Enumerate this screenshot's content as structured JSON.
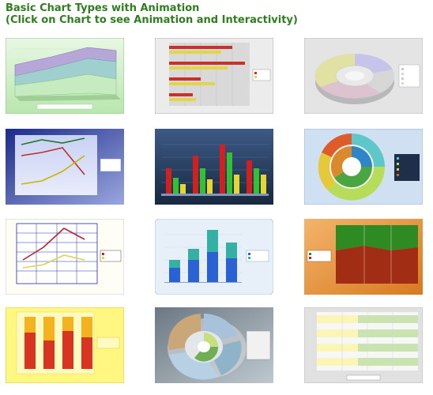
{
  "page": {
    "title_line1": "Basic Chart Types with Animation",
    "title_line2": "(Click on Chart to see Animation and Interactivity)"
  },
  "thumbnails": [
    {
      "name": "3d-area-chart-thumbnail",
      "kind": "area3d"
    },
    {
      "name": "horizontal-bar-chart-thumbnail",
      "kind": "hbar"
    },
    {
      "name": "3d-doughnut-chart-thumbnail",
      "kind": "donut3d"
    },
    {
      "name": "line-chart-thumbnail",
      "kind": "line_dark"
    },
    {
      "name": "3d-column-chart-thumbnail",
      "kind": "column"
    },
    {
      "name": "multi-ring-doughnut-chart-thumbnail",
      "kind": "rings"
    },
    {
      "name": "grid-line-chart-thumbnail",
      "kind": "line_grid"
    },
    {
      "name": "stacked-column-chart-thumbnail",
      "kind": "stacked"
    },
    {
      "name": "stacked-area-chart-thumbnail",
      "kind": "area_stack"
    },
    {
      "name": "cylinder-column-chart-thumbnail",
      "kind": "cylinder"
    },
    {
      "name": "exploded-ring-chart-thumbnail",
      "kind": "exploded"
    },
    {
      "name": "range-bar-chart-thumbnail",
      "kind": "range_bar"
    }
  ]
}
